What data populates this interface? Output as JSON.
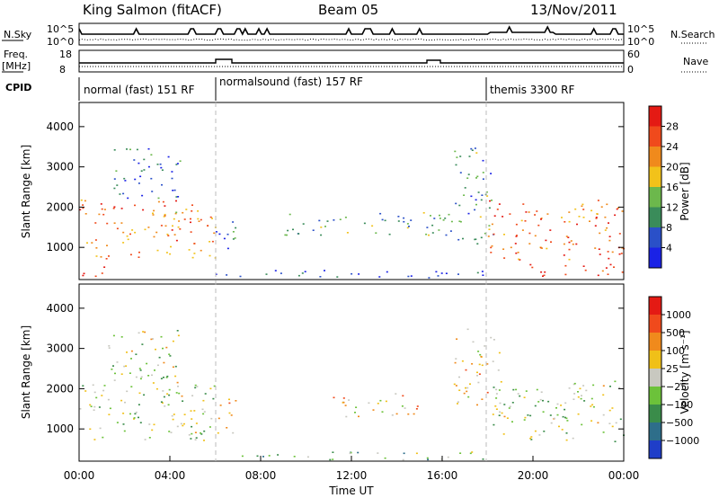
{
  "header": {
    "station": "King Salmon (fitACF)",
    "beam": "Beam 05",
    "date": "13/Nov/2011"
  },
  "status_panel": {
    "nsky_label": "N.Sky",
    "nsky_ticks": [
      "10^5",
      "10^0"
    ],
    "nsearch_label": "N.Search",
    "nsearch_ticks": [
      "10^5",
      "10^0"
    ],
    "freq_label_1": "Freq.",
    "freq_label_2": "[MHz]",
    "freq_ticks": [
      "18",
      "8"
    ],
    "nave_label": "Nave",
    "nave_ticks": [
      "60",
      "0"
    ],
    "cpid_label": "CPID"
  },
  "cpid_modes": [
    {
      "label": "normal (fast) 151 RF",
      "start_hour": 0,
      "end_hour": 6
    },
    {
      "label": "normalsound (fast) 157 RF",
      "start_hour": 6,
      "end_hour": 18
    },
    {
      "label": "themis 3300 RF",
      "start_hour": 18,
      "end_hour": 24
    }
  ],
  "chart_data": [
    {
      "type": "heatmap",
      "name": "power",
      "ylabel": "Slant Range [km]",
      "yticks": [
        "1000",
        "2000",
        "3000",
        "4000"
      ],
      "ylim": [
        200,
        4600
      ],
      "colorbar_label": "Power [dB]",
      "colorbar_ticks": [
        "4",
        "8",
        "12",
        "16",
        "20",
        "24",
        "28"
      ],
      "colorbar_colors": [
        "#1a22e6",
        "#2a50c8",
        "#3a8c5a",
        "#6cb84c",
        "#f2c21a",
        "#f08a1c",
        "#f04a1c",
        "#e41a14"
      ],
      "regions": [
        {
          "t0": 0.0,
          "t1": 6.0,
          "r0": 700,
          "r1": 2200,
          "level": 0.72
        },
        {
          "t0": 0.0,
          "t1": 1.5,
          "r0": 300,
          "r1": 600,
          "level": 0.95
        },
        {
          "t0": 1.5,
          "t1": 4.5,
          "r0": 2200,
          "r1": 3500,
          "level": 0.2
        },
        {
          "t0": 6.0,
          "t1": 7.0,
          "r0": 900,
          "r1": 1800,
          "level": 0.25
        },
        {
          "t0": 9.0,
          "t1": 16.5,
          "r0": 1300,
          "r1": 1900,
          "level": 0.35
        },
        {
          "t0": 16.5,
          "t1": 18.3,
          "r0": 1100,
          "r1": 3500,
          "level": 0.3
        },
        {
          "t0": 18.0,
          "t1": 24.0,
          "r0": 700,
          "r1": 2200,
          "level": 0.78
        },
        {
          "t0": 19.0,
          "t1": 24.0,
          "r0": 300,
          "r1": 600,
          "level": 0.92
        },
        {
          "t0": 6.0,
          "t1": 18.0,
          "r0": 250,
          "r1": 450,
          "level": 0.1
        }
      ]
    },
    {
      "type": "heatmap",
      "name": "velocity",
      "ylabel": "Slant Range [km]",
      "yticks": [
        "1000",
        "2000",
        "3000",
        "4000"
      ],
      "ylim": [
        200,
        4600
      ],
      "xlabel": "Time UT",
      "xticks": [
        "00:00",
        "04:00",
        "08:00",
        "12:00",
        "16:00",
        "20:00",
        "00:00"
      ],
      "xlim": [
        0,
        24
      ],
      "colorbar_label": "Velocity [m s⁻¹]",
      "colorbar_ticks": [
        "1000",
        "500",
        "100",
        "25",
        "−25",
        "−100",
        "−500",
        "−1000"
      ],
      "colorbar_colors": [
        "#1f3ec8",
        "#2e6e8a",
        "#3a8c4a",
        "#6cc23a",
        "#c8c8c0",
        "#f0c018",
        "#f08a1c",
        "#f04a1c",
        "#e41a14"
      ],
      "regions": [
        {
          "t0": 0.0,
          "t1": 6.0,
          "r0": 700,
          "r1": 2200,
          "level": 0.45
        },
        {
          "t0": 1.0,
          "t1": 4.5,
          "r0": 2200,
          "r1": 3500,
          "level": 0.5
        },
        {
          "t0": 6.0,
          "t1": 7.0,
          "r0": 900,
          "r1": 1800,
          "level": 0.62
        },
        {
          "t0": 11.0,
          "t1": 15.0,
          "r0": 1300,
          "r1": 1900,
          "level": 0.6
        },
        {
          "t0": 16.5,
          "t1": 18.5,
          "r0": 1600,
          "r1": 3500,
          "level": 0.6
        },
        {
          "t0": 18.0,
          "t1": 24.0,
          "r0": 700,
          "r1": 2200,
          "level": 0.45
        },
        {
          "t0": 6.0,
          "t1": 18.0,
          "r0": 250,
          "r1": 450,
          "level": 0.35
        }
      ]
    }
  ],
  "colors": {
    "dashed_marker": "#bbbbbb"
  }
}
